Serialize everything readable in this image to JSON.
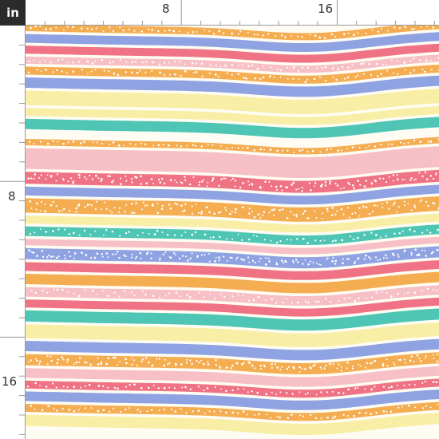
{
  "ruler": {
    "unit": "in",
    "top_labels": [
      "8",
      "16"
    ],
    "left_labels": [
      "8",
      "16"
    ]
  },
  "colors": {
    "orange": "#f5ad52",
    "blue": "#8fa3e3",
    "pink": "#f7bfc6",
    "coral": "#ef7384",
    "yellow": "#f8eea5",
    "teal": "#4fc6b5",
    "cream": "#fffdf3",
    "white": "#ffffff"
  }
}
